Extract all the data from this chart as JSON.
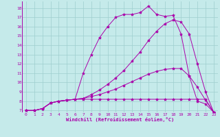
{
  "xlabel": "Windchill (Refroidissement éolien,°C)",
  "xlim": [
    -0.5,
    23.5
  ],
  "ylim": [
    6.8,
    18.7
  ],
  "xticks": [
    0,
    1,
    2,
    3,
    4,
    5,
    6,
    7,
    8,
    9,
    10,
    11,
    12,
    13,
    14,
    15,
    16,
    17,
    18,
    19,
    20,
    21,
    22,
    23
  ],
  "yticks": [
    7,
    8,
    9,
    10,
    11,
    12,
    13,
    14,
    15,
    16,
    17,
    18
  ],
  "bg_color": "#c5eaea",
  "line_color": "#aa00aa",
  "grid_color": "#9ecece",
  "curves": {
    "curve1": {
      "x": [
        0,
        1,
        2,
        3,
        4,
        5,
        6,
        7,
        8,
        9,
        10,
        11,
        12,
        13,
        14,
        15,
        16,
        17,
        18,
        19,
        20,
        21,
        22,
        23
      ],
      "y": [
        7.0,
        7.0,
        7.2,
        7.8,
        8.0,
        8.1,
        8.2,
        8.2,
        8.2,
        8.2,
        8.2,
        8.2,
        8.2,
        8.2,
        8.2,
        8.2,
        8.2,
        8.2,
        8.2,
        8.2,
        8.2,
        8.2,
        8.2,
        6.8
      ]
    },
    "curve2": {
      "x": [
        0,
        1,
        2,
        3,
        4,
        5,
        6,
        7,
        8,
        9,
        10,
        11,
        12,
        13,
        14,
        15,
        16,
        17,
        18,
        19,
        20,
        21,
        22,
        23
      ],
      "y": [
        7.0,
        7.0,
        7.2,
        7.8,
        8.0,
        8.1,
        8.2,
        8.3,
        8.5,
        8.7,
        9.0,
        9.3,
        9.7,
        10.1,
        10.5,
        10.9,
        11.2,
        11.4,
        11.5,
        11.5,
        10.7,
        9.5,
        8.1,
        6.8
      ]
    },
    "curve3": {
      "x": [
        0,
        1,
        2,
        3,
        4,
        5,
        6,
        7,
        8,
        9,
        10,
        11,
        12,
        13,
        14,
        15,
        16,
        17,
        18,
        19,
        20,
        21,
        22,
        23
      ],
      "y": [
        7.0,
        7.0,
        7.2,
        7.8,
        8.0,
        8.1,
        8.2,
        8.3,
        8.7,
        9.2,
        9.8,
        10.5,
        11.3,
        12.3,
        13.3,
        14.5,
        15.5,
        16.3,
        16.7,
        16.5,
        15.2,
        12.0,
        9.0,
        6.8
      ]
    },
    "curve4": {
      "x": [
        0,
        1,
        2,
        3,
        4,
        5,
        6,
        7,
        8,
        9,
        10,
        11,
        12,
        13,
        14,
        15,
        16,
        17,
        18,
        19,
        20,
        21,
        22,
        23
      ],
      "y": [
        7.0,
        7.0,
        7.2,
        7.8,
        8.0,
        8.1,
        8.2,
        11.0,
        13.0,
        14.8,
        16.0,
        17.0,
        17.3,
        17.3,
        17.5,
        18.2,
        17.3,
        17.1,
        17.2,
        15.2,
        10.7,
        8.0,
        7.7,
        6.8
      ]
    }
  }
}
